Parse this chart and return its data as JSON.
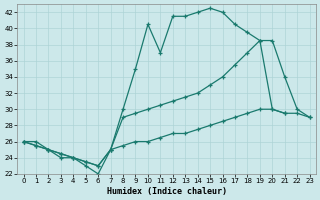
{
  "bg_color": "#cce8ea",
  "grid_color": "#aed4d6",
  "line_color": "#1a7a6e",
  "xlabel": "Humidex (Indice chaleur)",
  "xlim": [
    -0.5,
    23.5
  ],
  "ylim": [
    22,
    43
  ],
  "yticks": [
    22,
    24,
    26,
    28,
    30,
    32,
    34,
    36,
    38,
    40,
    42
  ],
  "xticks": [
    0,
    1,
    2,
    3,
    4,
    5,
    6,
    7,
    8,
    9,
    10,
    11,
    12,
    13,
    14,
    15,
    16,
    17,
    18,
    19,
    20,
    21,
    22,
    23
  ],
  "line1_x": [
    0,
    1,
    2,
    3,
    4,
    5,
    6,
    7,
    8,
    9,
    10,
    11,
    12,
    13,
    14,
    15,
    16,
    17,
    18,
    19,
    20,
    21
  ],
  "line1_y": [
    26,
    26,
    25,
    24,
    24,
    23,
    22,
    25,
    30,
    35,
    40.5,
    37,
    41.5,
    41.5,
    42,
    42.5,
    42,
    40.5,
    39.5,
    38.5,
    30,
    29.5
  ],
  "line2_x": [
    0,
    1,
    2,
    3,
    4,
    5,
    6,
    7,
    8,
    9,
    10,
    11,
    12,
    13,
    14,
    15,
    16,
    17,
    18,
    19,
    20,
    21,
    22,
    23
  ],
  "line2_y": [
    26,
    25.5,
    25,
    24.5,
    24,
    23.5,
    23,
    25,
    29,
    29.5,
    30,
    30.5,
    31,
    31.5,
    32,
    33,
    34,
    35.5,
    37,
    38.5,
    38.5,
    34,
    30,
    29
  ],
  "line3_x": [
    0,
    1,
    2,
    3,
    4,
    5,
    6,
    7,
    8,
    9,
    10,
    11,
    12,
    13,
    14,
    15,
    16,
    17,
    18,
    19,
    20,
    21,
    22,
    23
  ],
  "line3_y": [
    26,
    25.5,
    25,
    24.5,
    24,
    23.5,
    23,
    25,
    25.5,
    26,
    26,
    26.5,
    27,
    27,
    27.5,
    28,
    28.5,
    29,
    29.5,
    30,
    30,
    29.5,
    29.5,
    29
  ]
}
